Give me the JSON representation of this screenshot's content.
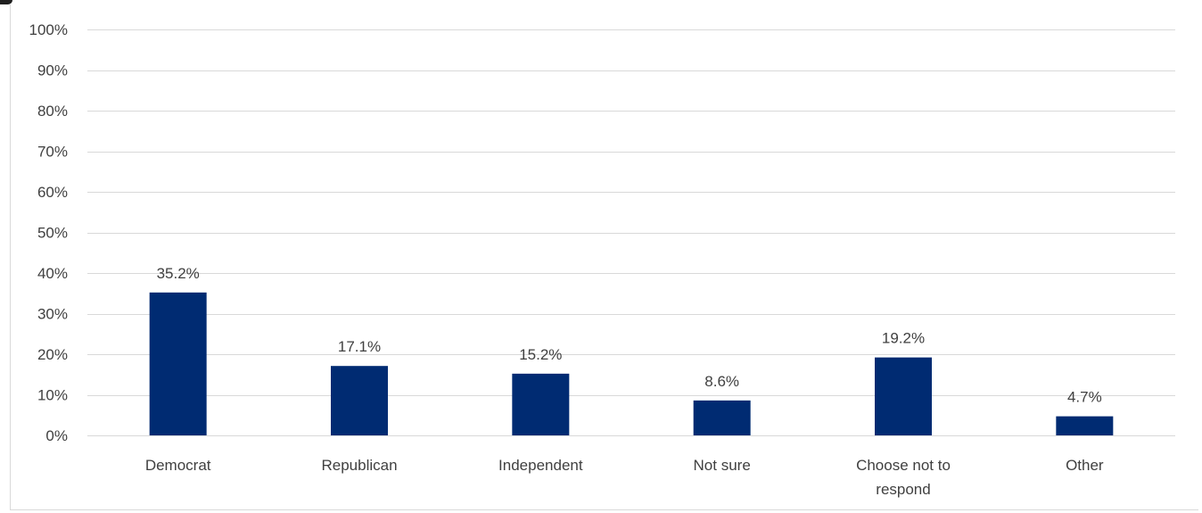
{
  "chart_data": {
    "type": "bar",
    "categories": [
      "Democrat",
      "Republican",
      "Independent",
      "Not sure",
      "Choose not to respond",
      "Other"
    ],
    "category_label_lines": [
      [
        "Democrat"
      ],
      [
        "Republican"
      ],
      [
        "Independent"
      ],
      [
        "Not sure"
      ],
      [
        "Choose not to",
        "respond"
      ],
      [
        "Other"
      ]
    ],
    "values": [
      35.2,
      17.1,
      15.2,
      8.6,
      19.2,
      4.7
    ],
    "data_labels": [
      "35.2%",
      "17.1%",
      "15.2%",
      "8.6%",
      "19.2%",
      "4.7%"
    ],
    "ylim": [
      0,
      100
    ],
    "yticks": [
      0,
      10,
      20,
      30,
      40,
      50,
      60,
      70,
      80,
      90,
      100
    ],
    "ytick_labels": [
      "0%",
      "10%",
      "20%",
      "30%",
      "40%",
      "50%",
      "60%",
      "70%",
      "80%",
      "90%",
      "100%"
    ],
    "grid": true,
    "bar_color": "#002B72",
    "grid_color": "#D9D9D9",
    "text_color": "#404040"
  }
}
